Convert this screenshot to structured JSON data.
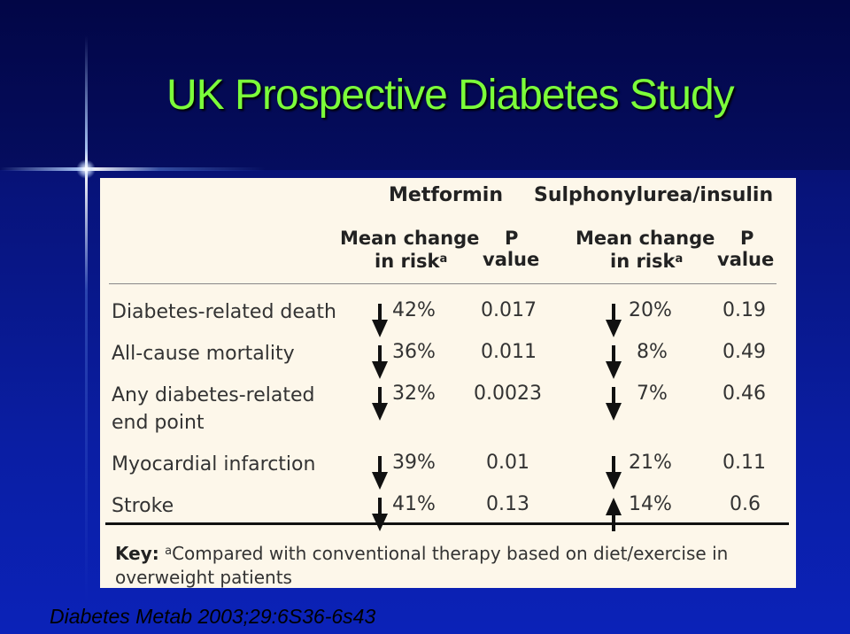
{
  "title": "UK Prospective Diabetes Study",
  "headers": {
    "metformin": "Metformin",
    "sulphonylurea": "Sulphonylurea/insulin",
    "mean_change": "Mean change",
    "in_risk": "in risk",
    "footnote_mark": "a",
    "p": "P",
    "value": "value"
  },
  "rows": [
    {
      "label": "Diabetes-related death",
      "met_dir": "down",
      "met_change": "42%",
      "met_p": "0.017",
      "sul_dir": "down",
      "sul_change": "20%",
      "sul_p": "0.19"
    },
    {
      "label": "All-cause mortality",
      "met_dir": "down",
      "met_change": "36%",
      "met_p": "0.011",
      "sul_dir": "down",
      "sul_change": "8%",
      "sul_p": "0.49"
    },
    {
      "label": "Any diabetes-related end point",
      "met_dir": "down",
      "met_change": "32%",
      "met_p": "0.0023",
      "sul_dir": "down",
      "sul_change": "7%",
      "sul_p": "0.46"
    },
    {
      "label": "Myocardial infarction",
      "met_dir": "down",
      "met_change": "39%",
      "met_p": "0.01",
      "sul_dir": "down",
      "sul_change": "21%",
      "sul_p": "0.11"
    },
    {
      "label": "Stroke",
      "met_dir": "down",
      "met_change": "41%",
      "met_p": "0.13",
      "sul_dir": "up",
      "sul_change": "14%",
      "sul_p": "0.6"
    }
  ],
  "key": {
    "label": "Key:",
    "mark": "a",
    "text": "Compared with conventional therapy based on diet/exercise in overweight patients"
  },
  "citation": "Diabetes Metab 2003;29:6S36-6s43"
}
